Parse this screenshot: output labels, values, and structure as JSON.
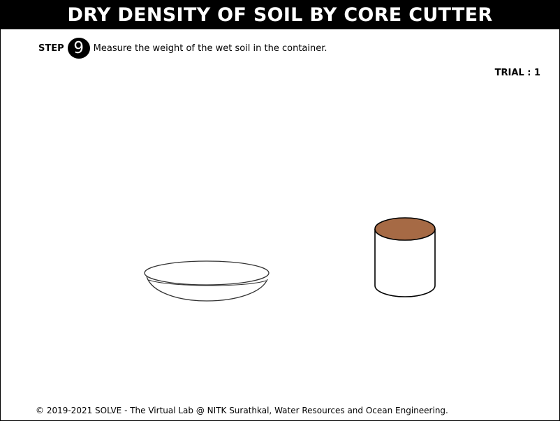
{
  "header": {
    "title": "DRY DENSITY OF SOIL BY CORE CUTTER"
  },
  "step": {
    "label": "STEP",
    "number": "9",
    "instruction": "Measure the weight of the wet soil in the container."
  },
  "trial": {
    "text": "TRIAL : 1"
  },
  "scene": {
    "items": [
      "dish",
      "container-with-wet-soil"
    ],
    "colors": {
      "soil": "#a66a45",
      "outline": "#000000",
      "dish_outline": "#333333",
      "background": "#ffffff"
    }
  },
  "footer": {
    "text": "© 2019-2021 SOLVE - The Virtual Lab @ NITK Surathkal, Water Resources and Ocean Engineering."
  }
}
